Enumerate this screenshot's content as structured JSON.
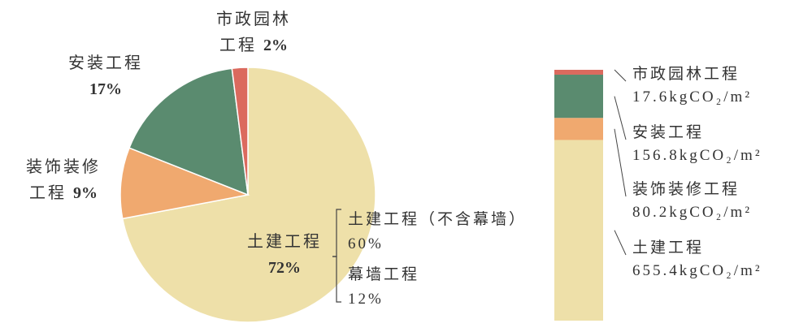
{
  "chart_data": [
    {
      "type": "pie",
      "categories": [
        "土建工程",
        "装饰装修工程",
        "安装工程",
        "市政园林工程"
      ],
      "values": [
        72,
        9,
        17,
        2
      ],
      "value_labels": [
        "72%",
        "9%",
        "17%",
        "2%"
      ],
      "colors": [
        "#EEE0A9",
        "#F0A96F",
        "#5A8B6F",
        "#DB6A5E"
      ],
      "breakdown": {
        "categories": [
          "土建工程（不含幕墙）",
          "幕墙工程"
        ],
        "values": [
          60,
          12
        ],
        "value_labels": [
          "60%",
          "12%"
        ]
      }
    },
    {
      "type": "stacked_bar",
      "series": [
        {
          "name": "土建工程",
          "color": "#EEE0A9",
          "values": [
            655.4
          ],
          "value_labels": [
            "655.4kgCO₂/m²"
          ]
        },
        {
          "name": "装饰装修工程",
          "color": "#F0A96F",
          "values": [
            80.2
          ],
          "value_labels": [
            "80.2kgCO₂/m²"
          ]
        },
        {
          "name": "安装工程",
          "color": "#5A8B6F",
          "values": [
            156.8
          ],
          "value_labels": [
            "156.8kgCO₂/m²"
          ]
        },
        {
          "name": "市政园林工程",
          "color": "#DB6A5E",
          "values": [
            17.6
          ],
          "value_labels": [
            "17.6kgCO₂/m²"
          ]
        }
      ]
    }
  ]
}
